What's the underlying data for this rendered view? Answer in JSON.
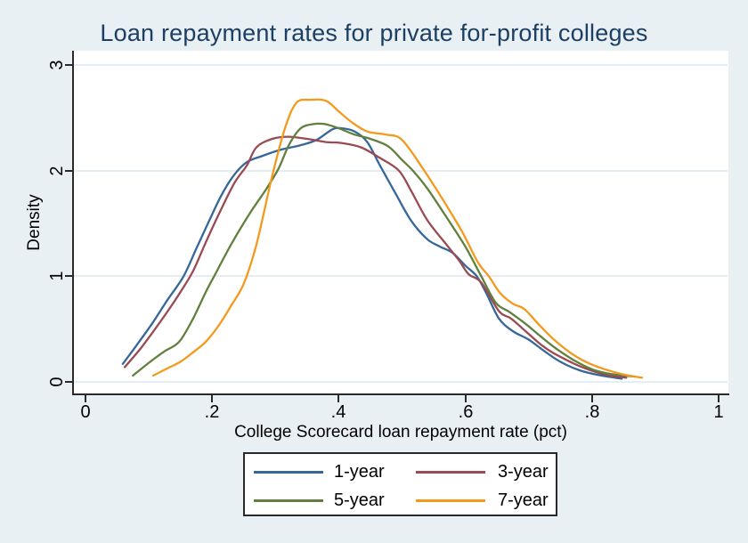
{
  "chart_data": {
    "type": "line",
    "subtype": "kernel-density",
    "title": "Loan repayment rates for private for-profit colleges",
    "xlabel": "College Scorecard loan repayment rate (pct)",
    "ylabel": "Density",
    "xlim": [
      0,
      1
    ],
    "ylim": [
      0,
      3
    ],
    "grid": "horizontal-gridlines-on",
    "legend_position": "bottom",
    "x_ticks": {
      "labels": [
        "0",
        ".2",
        ".4",
        ".6",
        ".8",
        "1"
      ],
      "values": [
        0,
        0.2,
        0.4,
        0.6,
        0.8,
        1
      ]
    },
    "y_ticks": {
      "labels": [
        "0",
        "1",
        "2",
        "3"
      ],
      "values": [
        0,
        1,
        2,
        3
      ]
    },
    "background_color": "#e9f0f4",
    "plot_background_color": "#ffffff",
    "title_color": "#1d3f63",
    "series": [
      {
        "name": "1-year",
        "color": "#36679a",
        "points": [
          [
            0.059,
            0.17
          ],
          [
            0.08,
            0.34
          ],
          [
            0.105,
            0.55
          ],
          [
            0.13,
            0.78
          ],
          [
            0.155,
            1.0
          ],
          [
            0.175,
            1.26
          ],
          [
            0.195,
            1.52
          ],
          [
            0.215,
            1.77
          ],
          [
            0.235,
            1.96
          ],
          [
            0.255,
            2.08
          ],
          [
            0.28,
            2.14
          ],
          [
            0.31,
            2.2
          ],
          [
            0.34,
            2.24
          ],
          [
            0.365,
            2.29
          ],
          [
            0.39,
            2.39
          ],
          [
            0.405,
            2.4
          ],
          [
            0.425,
            2.37
          ],
          [
            0.445,
            2.27
          ],
          [
            0.465,
            2.05
          ],
          [
            0.49,
            1.78
          ],
          [
            0.515,
            1.52
          ],
          [
            0.54,
            1.35
          ],
          [
            0.56,
            1.28
          ],
          [
            0.58,
            1.22
          ],
          [
            0.6,
            1.1
          ],
          [
            0.618,
            1.0
          ],
          [
            0.633,
            0.84
          ],
          [
            0.653,
            0.6
          ],
          [
            0.675,
            0.48
          ],
          [
            0.7,
            0.4
          ],
          [
            0.725,
            0.29
          ],
          [
            0.75,
            0.19
          ],
          [
            0.78,
            0.11
          ],
          [
            0.81,
            0.065
          ],
          [
            0.847,
            0.03
          ]
        ]
      },
      {
        "name": "3-year",
        "color": "#9a4a52",
        "points": [
          [
            0.062,
            0.14
          ],
          [
            0.085,
            0.3
          ],
          [
            0.105,
            0.46
          ],
          [
            0.13,
            0.67
          ],
          [
            0.15,
            0.85
          ],
          [
            0.17,
            1.05
          ],
          [
            0.19,
            1.32
          ],
          [
            0.21,
            1.58
          ],
          [
            0.235,
            1.88
          ],
          [
            0.255,
            2.05
          ],
          [
            0.27,
            2.22
          ],
          [
            0.295,
            2.3
          ],
          [
            0.32,
            2.32
          ],
          [
            0.35,
            2.3
          ],
          [
            0.38,
            2.27
          ],
          [
            0.405,
            2.26
          ],
          [
            0.435,
            2.22
          ],
          [
            0.465,
            2.12
          ],
          [
            0.495,
            2.0
          ],
          [
            0.515,
            1.8
          ],
          [
            0.54,
            1.53
          ],
          [
            0.57,
            1.3
          ],
          [
            0.59,
            1.15
          ],
          [
            0.605,
            1.02
          ],
          [
            0.625,
            0.94
          ],
          [
            0.653,
            0.67
          ],
          [
            0.672,
            0.6
          ],
          [
            0.695,
            0.48
          ],
          [
            0.72,
            0.35
          ],
          [
            0.74,
            0.27
          ],
          [
            0.78,
            0.15
          ],
          [
            0.82,
            0.07
          ],
          [
            0.854,
            0.04
          ]
        ]
      },
      {
        "name": "5-year",
        "color": "#61803d",
        "points": [
          [
            0.075,
            0.06
          ],
          [
            0.1,
            0.18
          ],
          [
            0.125,
            0.29
          ],
          [
            0.148,
            0.38
          ],
          [
            0.17,
            0.6
          ],
          [
            0.19,
            0.85
          ],
          [
            0.205,
            1.02
          ],
          [
            0.23,
            1.3
          ],
          [
            0.26,
            1.6
          ],
          [
            0.285,
            1.82
          ],
          [
            0.305,
            2.02
          ],
          [
            0.322,
            2.25
          ],
          [
            0.34,
            2.4
          ],
          [
            0.36,
            2.44
          ],
          [
            0.378,
            2.44
          ],
          [
            0.4,
            2.4
          ],
          [
            0.425,
            2.34
          ],
          [
            0.45,
            2.3
          ],
          [
            0.478,
            2.23
          ],
          [
            0.5,
            2.1
          ],
          [
            0.517,
            2.0
          ],
          [
            0.54,
            1.83
          ],
          [
            0.57,
            1.56
          ],
          [
            0.6,
            1.28
          ],
          [
            0.625,
            1.0
          ],
          [
            0.648,
            0.75
          ],
          [
            0.67,
            0.66
          ],
          [
            0.695,
            0.55
          ],
          [
            0.715,
            0.45
          ],
          [
            0.74,
            0.33
          ],
          [
            0.77,
            0.21
          ],
          [
            0.8,
            0.12
          ],
          [
            0.825,
            0.08
          ],
          [
            0.85,
            0.06
          ],
          [
            0.868,
            0.05
          ]
        ]
      },
      {
        "name": "7-year",
        "color": "#f39a1c",
        "points": [
          [
            0.107,
            0.06
          ],
          [
            0.13,
            0.13
          ],
          [
            0.15,
            0.19
          ],
          [
            0.17,
            0.28
          ],
          [
            0.19,
            0.38
          ],
          [
            0.21,
            0.53
          ],
          [
            0.23,
            0.72
          ],
          [
            0.25,
            0.93
          ],
          [
            0.27,
            1.3
          ],
          [
            0.295,
            1.95
          ],
          [
            0.315,
            2.4
          ],
          [
            0.333,
            2.64
          ],
          [
            0.355,
            2.67
          ],
          [
            0.38,
            2.66
          ],
          [
            0.4,
            2.56
          ],
          [
            0.42,
            2.46
          ],
          [
            0.445,
            2.37
          ],
          [
            0.475,
            2.34
          ],
          [
            0.5,
            2.29
          ],
          [
            0.535,
            2.0
          ],
          [
            0.565,
            1.72
          ],
          [
            0.595,
            1.42
          ],
          [
            0.62,
            1.13
          ],
          [
            0.637,
            1.0
          ],
          [
            0.655,
            0.84
          ],
          [
            0.675,
            0.74
          ],
          [
            0.693,
            0.69
          ],
          [
            0.715,
            0.55
          ],
          [
            0.74,
            0.4
          ],
          [
            0.765,
            0.28
          ],
          [
            0.79,
            0.19
          ],
          [
            0.82,
            0.12
          ],
          [
            0.85,
            0.07
          ],
          [
            0.879,
            0.04
          ]
        ]
      }
    ]
  }
}
